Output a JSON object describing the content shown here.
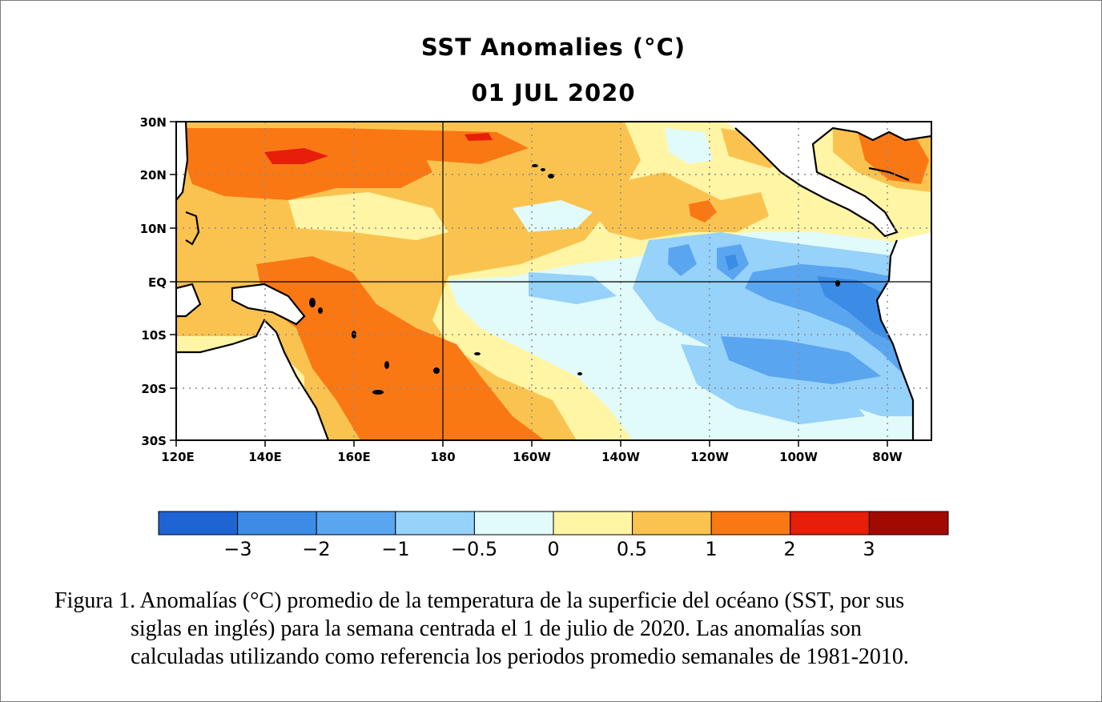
{
  "figure": {
    "title": "SST Anomalies (°C)",
    "date": "01 JUL 2020"
  },
  "map": {
    "lat_labels": [
      "30N",
      "20N",
      "10N",
      "EQ",
      "10S",
      "20S",
      "30S"
    ],
    "lon_labels": [
      "120E",
      "140E",
      "160E",
      "180",
      "160W",
      "140W",
      "120W",
      "100W",
      "80W"
    ],
    "colors": {
      "c_m3": "#1e64d2",
      "c_m2": "#3c8ce6",
      "c_m1": "#5aa5f0",
      "c_m05": "#96d2fa",
      "c_0": "#e1fafa",
      "c_05": "#fff5a5",
      "c_1": "#fac350",
      "c_2": "#fa7814",
      "c_3": "#e61e0a",
      "c_top": "#a00a00",
      "land": "#ffffff",
      "coast": "#000000"
    }
  },
  "colorbar": {
    "tick_labels": [
      "−3",
      "−2",
      "−1",
      "−0.5",
      "0",
      "0.5",
      "1",
      "2",
      "3"
    ],
    "colors": [
      "#1e64d2",
      "#3c8ce6",
      "#5aa5f0",
      "#96d2fa",
      "#e1fafa",
      "#fff5a5",
      "#fac350",
      "#fa7814",
      "#e61e0a",
      "#a00a00"
    ]
  },
  "caption": {
    "line1": "Figura 1. Anomalías (°C) promedio de la temperatura de la superficie del océano (SST, por sus",
    "line2": "siglas en inglés) para la semana centrada el 1 de julio de 2020. Las anomalías son",
    "line3": "calculadas utilizando como referencia los periodos promedio semanales de 1981-2010."
  }
}
